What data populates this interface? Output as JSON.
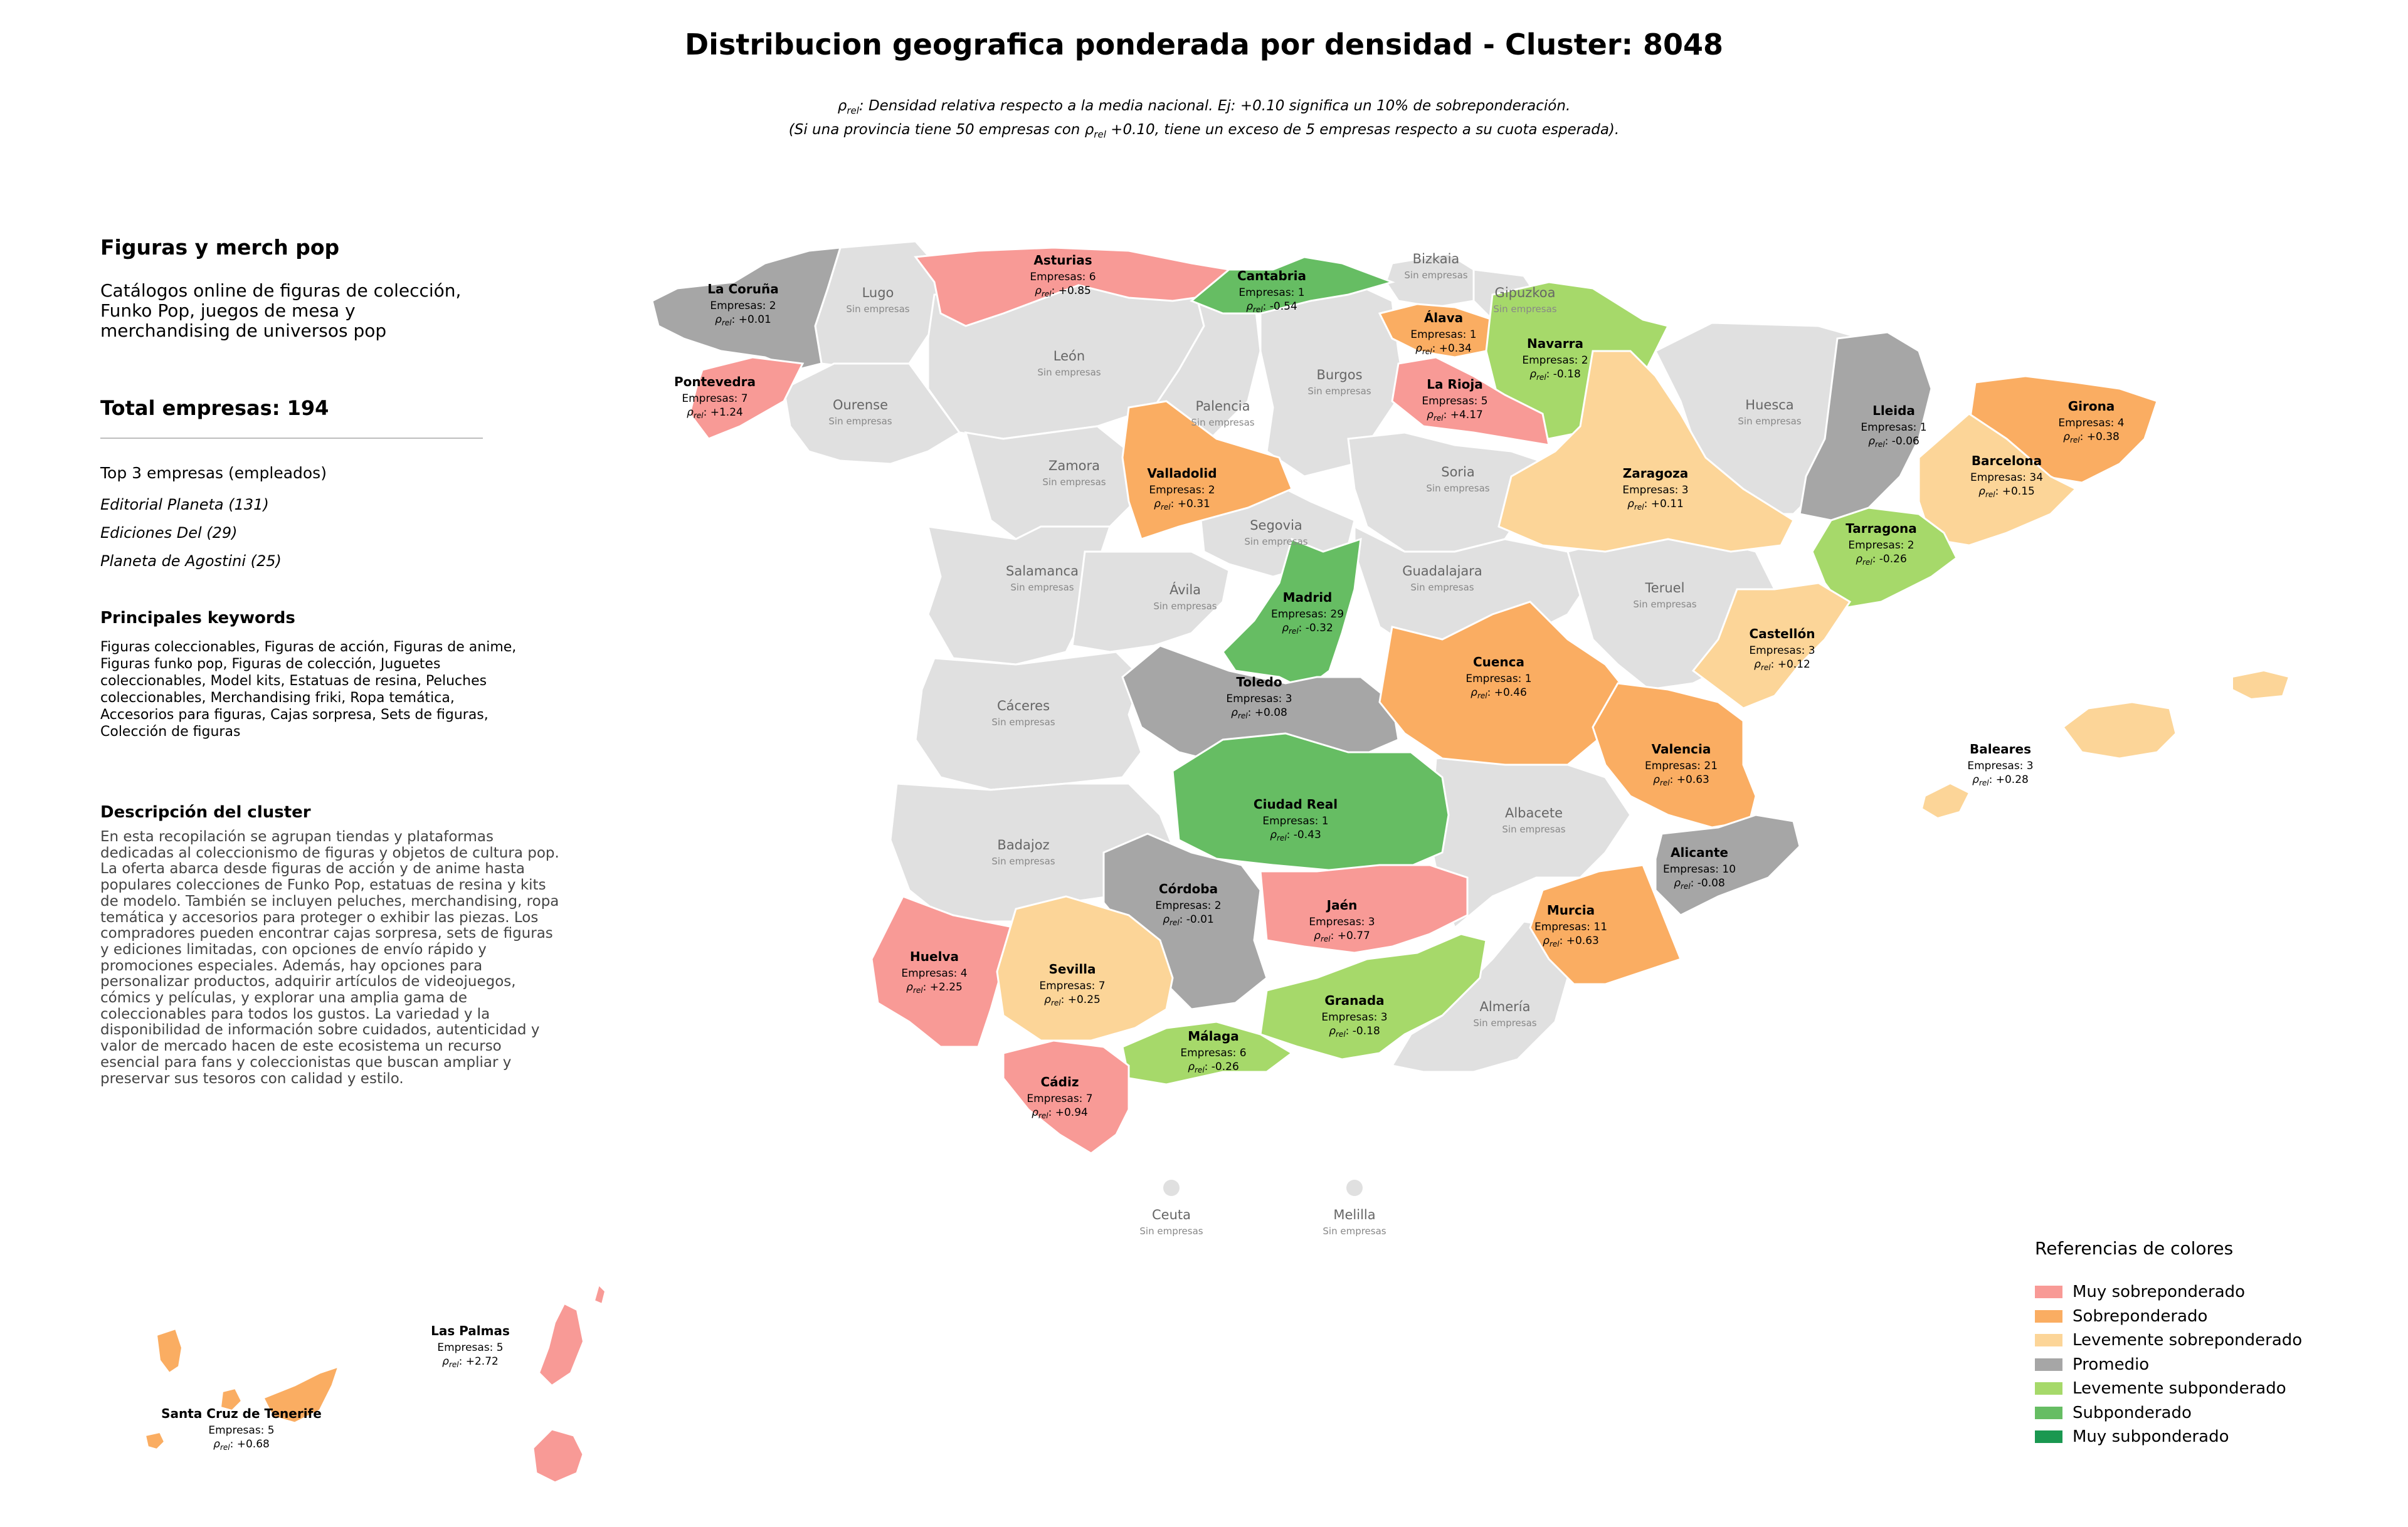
{
  "title": "Distribucion geografica ponderada por densidad - Cluster: 8048",
  "subtitle": {
    "line1": ": Densidad relativa respecto a la media nacional. Ej: +0.10 significa un 10% de sobreponderación.",
    "line2_a": "(Si una provincia tiene 50 empresas con ",
    "line2_b": " +0.10, tiene un exceso de 5 empresas respecto a su cuota esperada)."
  },
  "rho_symbol": "ρ",
  "rho_sub": "rel",
  "panel": {
    "heading": "Figuras y merch pop",
    "description": "Catálogos online de figuras de colección, Funko Pop, juegos de mesa y merchandising de universos pop",
    "total": "Total empresas: 194",
    "top_title": "Top 3 empresas (empleados)",
    "top": [
      "Editorial Planeta (131)",
      "Ediciones Del (29)",
      "Planeta de Agostini (25)"
    ],
    "keywords_title": "Principales keywords",
    "keywords": "Figuras coleccionables, Figuras de acción, Figuras de anime, Figuras funko pop, Figuras de colección, Juguetes coleccionables, Model kits, Estatuas de resina, Peluches coleccionables, Merchandising friki, Ropa temática, Accesorios para figuras, Cajas sorpresa, Sets de figuras, Colección de figuras",
    "cluster_title": "Descripción del cluster",
    "cluster_desc": "En esta recopilación se agrupan tiendas y plataformas dedicadas al coleccionismo de figuras y objetos de cultura pop. La oferta abarca desde figuras de acción y de anime hasta populares colecciones de Funko Pop, estatuas de resina y kits de modelo. También se incluyen peluches, merchandising, ropa temática y accesorios para proteger o exhibir las piezas. Los compradores pueden encontrar cajas sorpresa, sets de figuras y ediciones limitadas, con opciones de envío rápido y promociones especiales. Además, hay opciones para personalizar productos, adquirir artículos de videojuegos, cómics y películas, y explorar una amplia gama de coleccionables para todos los gustos. La variedad y la disponibilidad de información sobre cuidados, autenticidad y valor de mercado hacen de este ecosistema un recurso esencial para fans y coleccionistas que buscan ampliar y preservar sus tesoros con calidad y estilo."
  },
  "colors": {
    "muy_sobre": "#f89a96",
    "sobre": "#faad62",
    "lev_sobre": "#fcd598",
    "promedio": "#a6a6a6",
    "lev_sub": "#a6d96a",
    "sub": "#66bd63",
    "muy_sub": "#1a9850",
    "sin": "#e0e0e0"
  },
  "legend": {
    "title": "Referencias de colores",
    "items": [
      {
        "label": "Muy sobreponderado",
        "color": "#f89a96"
      },
      {
        "label": "Sobreponderado",
        "color": "#faad62"
      },
      {
        "label": "Levemente sobreponderado",
        "color": "#fcd598"
      },
      {
        "label": "Promedio",
        "color": "#a6a6a6"
      },
      {
        "label": "Levemente subponderado",
        "color": "#a6d96a"
      },
      {
        "label": "Subponderado",
        "color": "#66bd63"
      },
      {
        "label": "Muy subponderado",
        "color": "#1a9850"
      }
    ]
  },
  "empresas_prefix": "Empresas: ",
  "sin_empresas": "Sin empresas",
  "provinces": [
    {
      "name": "La Coruña",
      "empresas": 2,
      "rho": "+0.01",
      "category": "promedio"
    },
    {
      "name": "Asturias",
      "empresas": 6,
      "rho": "+0.85",
      "category": "muy_sobre"
    },
    {
      "name": "Cantabria",
      "empresas": 1,
      "rho": "-0.54",
      "category": "sub"
    },
    {
      "name": "Álava",
      "empresas": 1,
      "rho": "+0.34",
      "category": "sobre"
    },
    {
      "name": "Navarra",
      "empresas": 2,
      "rho": "-0.18",
      "category": "lev_sub"
    },
    {
      "name": "Pontevedra",
      "empresas": 7,
      "rho": "+1.24",
      "category": "muy_sobre"
    },
    {
      "name": "La Rioja",
      "empresas": 5,
      "rho": "+4.17",
      "category": "muy_sobre"
    },
    {
      "name": "Lleida",
      "empresas": 1,
      "rho": "-0.06",
      "category": "promedio"
    },
    {
      "name": "Girona",
      "empresas": 4,
      "rho": "+0.38",
      "category": "sobre"
    },
    {
      "name": "Barcelona",
      "empresas": 34,
      "rho": "+0.15",
      "category": "lev_sobre"
    },
    {
      "name": "Zaragoza",
      "empresas": 3,
      "rho": "+0.11",
      "category": "lev_sobre"
    },
    {
      "name": "Valladolid",
      "empresas": 2,
      "rho": "+0.31",
      "category": "sobre"
    },
    {
      "name": "Tarragona",
      "empresas": 2,
      "rho": "-0.26",
      "category": "lev_sub"
    },
    {
      "name": "Madrid",
      "empresas": 29,
      "rho": "-0.32",
      "category": "sub"
    },
    {
      "name": "Castellón",
      "empresas": 3,
      "rho": "+0.12",
      "category": "lev_sobre"
    },
    {
      "name": "Toledo",
      "empresas": 3,
      "rho": "+0.08",
      "category": "promedio"
    },
    {
      "name": "Cuenca",
      "empresas": 1,
      "rho": "+0.46",
      "category": "sobre"
    },
    {
      "name": "Valencia",
      "empresas": 21,
      "rho": "+0.63",
      "category": "sobre"
    },
    {
      "name": "Baleares",
      "empresas": 3,
      "rho": "+0.28",
      "category": "lev_sobre"
    },
    {
      "name": "Ciudad Real",
      "empresas": 1,
      "rho": "-0.43",
      "category": "sub"
    },
    {
      "name": "Alicante",
      "empresas": 10,
      "rho": "-0.08",
      "category": "promedio"
    },
    {
      "name": "Córdoba",
      "empresas": 2,
      "rho": "-0.01",
      "category": "promedio"
    },
    {
      "name": "Jaén",
      "empresas": 3,
      "rho": "+0.77",
      "category": "muy_sobre"
    },
    {
      "name": "Murcia",
      "empresas": 11,
      "rho": "+0.63",
      "category": "sobre"
    },
    {
      "name": "Huelva",
      "empresas": 4,
      "rho": "+2.25",
      "category": "muy_sobre"
    },
    {
      "name": "Sevilla",
      "empresas": 7,
      "rho": "+0.25",
      "category": "lev_sobre"
    },
    {
      "name": "Granada",
      "empresas": 3,
      "rho": "-0.18",
      "category": "lev_sub"
    },
    {
      "name": "Málaga",
      "empresas": 6,
      "rho": "-0.26",
      "category": "lev_sub"
    },
    {
      "name": "Cádiz",
      "empresas": 7,
      "rho": "+0.94",
      "category": "muy_sobre"
    },
    {
      "name": "Las Palmas",
      "empresas": 5,
      "rho": "+2.72",
      "category": "muy_sobre"
    },
    {
      "name": "Santa Cruz de Tenerife",
      "empresas": 5,
      "rho": "+0.68",
      "category": "sobre"
    }
  ],
  "empty_provinces": [
    "Lugo",
    "Bizkaia",
    "Gipuzkoa",
    "León",
    "Ourense",
    "Palencia",
    "Burgos",
    "Huesca",
    "Zamora",
    "Soria",
    "Segovia",
    "Salamanca",
    "Ávila",
    "Guadalajara",
    "Teruel",
    "Cáceres",
    "Albacete",
    "Badajoz",
    "Almería",
    "Ceuta",
    "Melilla"
  ]
}
